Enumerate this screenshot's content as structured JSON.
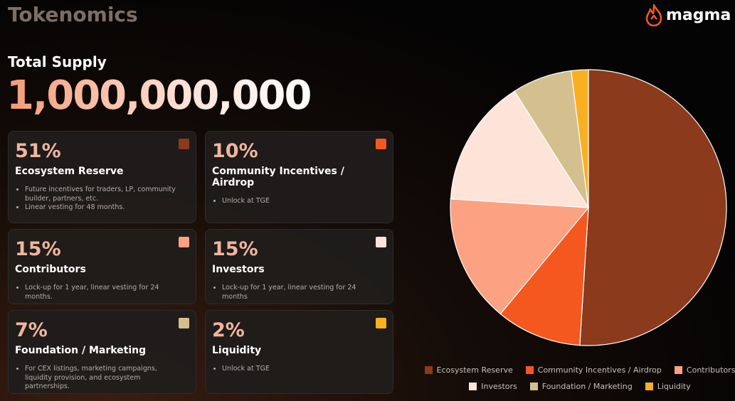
{
  "header": {
    "title": "Tokenomics",
    "logo": "magma"
  },
  "supply": {
    "label": "Total Supply",
    "value": "1,000,000,000"
  },
  "cards": [
    {
      "percent": "51%",
      "title": "Ecosystem Reserve",
      "color": "#8b3a1c",
      "bullets": [
        "Future incentives for traders, LP, community builder, partners, etc.",
        "Linear vesting for 48 months."
      ]
    },
    {
      "percent": "10%",
      "title": "Community Incentives / Airdrop",
      "color": "#f4581f",
      "bullets": [
        "Unlock at TGE"
      ]
    },
    {
      "percent": "15%",
      "title": "Contributors",
      "color": "#fca182",
      "bullets": [
        "Lock-up for 1 year, linear vesting for 24 months."
      ]
    },
    {
      "percent": "15%",
      "title": "Investors",
      "color": "#fde3d8",
      "bullets": [
        "Lock-up for 1 year, linear vesting for 24 months"
      ]
    },
    {
      "percent": "7%",
      "title": "Foundation / Marketing",
      "color": "#d4bf8f",
      "bullets": [
        "For CEX listings, marketing campaigns, liquidity provision, and ecosystem partnerships."
      ]
    },
    {
      "percent": "2%",
      "title": "Liquidity",
      "color": "#f9b020",
      "bullets": [
        "Unlock at TGE"
      ]
    }
  ],
  "chart_data": {
    "type": "pie",
    "categories": [
      "Ecosystem Reserve",
      "Community Incentives / Airdrop",
      "Contributors",
      "Investors",
      "Foundation / Marketing",
      "Liquidity"
    ],
    "values": [
      51,
      10,
      15,
      15,
      7,
      2
    ],
    "colors": [
      "#8b3a1c",
      "#f4581f",
      "#fca182",
      "#fde3d8",
      "#d4bf8f",
      "#f9b020"
    ],
    "legend": "bottom"
  }
}
